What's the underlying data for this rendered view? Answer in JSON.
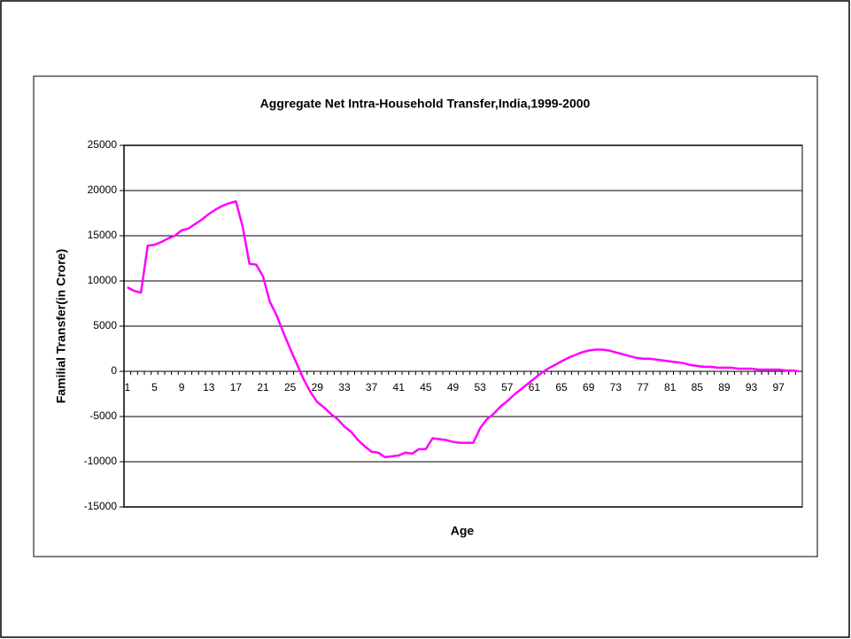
{
  "chart_data": {
    "type": "line",
    "title": "Aggregate Net Intra-Household Transfer,India,1999-2000",
    "x_label": "Age",
    "y_label": "Familial Transfer(in Crore)",
    "categories": [
      1,
      null,
      null,
      null,
      5,
      null,
      null,
      null,
      9,
      null,
      null,
      null,
      13,
      null,
      null,
      null,
      17,
      null,
      null,
      null,
      21,
      null,
      null,
      null,
      25,
      null,
      null,
      null,
      29,
      null,
      null,
      null,
      33,
      null,
      null,
      null,
      37,
      null,
      null,
      null,
      41,
      null,
      null,
      null,
      45,
      null,
      null,
      null,
      49,
      null,
      null,
      null,
      53,
      null,
      null,
      null,
      57,
      null,
      null,
      null,
      61,
      null,
      null,
      null,
      65,
      null,
      null,
      null,
      69,
      null,
      null,
      null,
      73,
      null,
      null,
      null,
      77,
      null,
      null,
      null,
      81,
      null,
      null,
      null,
      85,
      null,
      null,
      null,
      89,
      null,
      null,
      null,
      93,
      null,
      null,
      null,
      97,
      null,
      null,
      null
    ],
    "series": [
      {
        "color": "#ff00ff",
        "values": [
          9300,
          8900,
          8700,
          13900,
          14000,
          14300,
          14700,
          15000,
          15600,
          15800,
          16300,
          16800,
          17400,
          17900,
          18300,
          18600,
          18800,
          16000,
          11900,
          11800,
          10500,
          7700,
          6200,
          4300,
          2500,
          800,
          -900,
          -2300,
          -3400,
          -4000,
          -4700,
          -5300,
          -6100,
          -6700,
          -7600,
          -8300,
          -8900,
          -9000,
          -9500,
          -9400,
          -9300,
          -9000,
          -9100,
          -8600,
          -8600,
          -7400,
          -7500,
          -7600,
          -7800,
          -7900,
          -7900,
          -7900,
          -6300,
          -5300,
          -4700,
          -3900,
          -3300,
          -2600,
          -2000,
          -1400,
          -800,
          -200,
          300,
          700,
          1100,
          1500,
          1800,
          2100,
          2300,
          2400,
          2400,
          2300,
          2100,
          1900,
          1700,
          1500,
          1400,
          1400,
          1300,
          1200,
          1100,
          1000,
          900,
          700,
          600,
          500,
          500,
          400,
          400,
          400,
          300,
          300,
          300,
          200,
          200,
          200,
          200,
          100,
          100,
          0
        ]
      }
    ],
    "ylim": [
      -15000,
      25000
    ],
    "yticks": [
      -15000,
      -10000,
      -5000,
      0,
      5000,
      10000,
      15000,
      20000,
      25000
    ],
    "grid": true
  }
}
